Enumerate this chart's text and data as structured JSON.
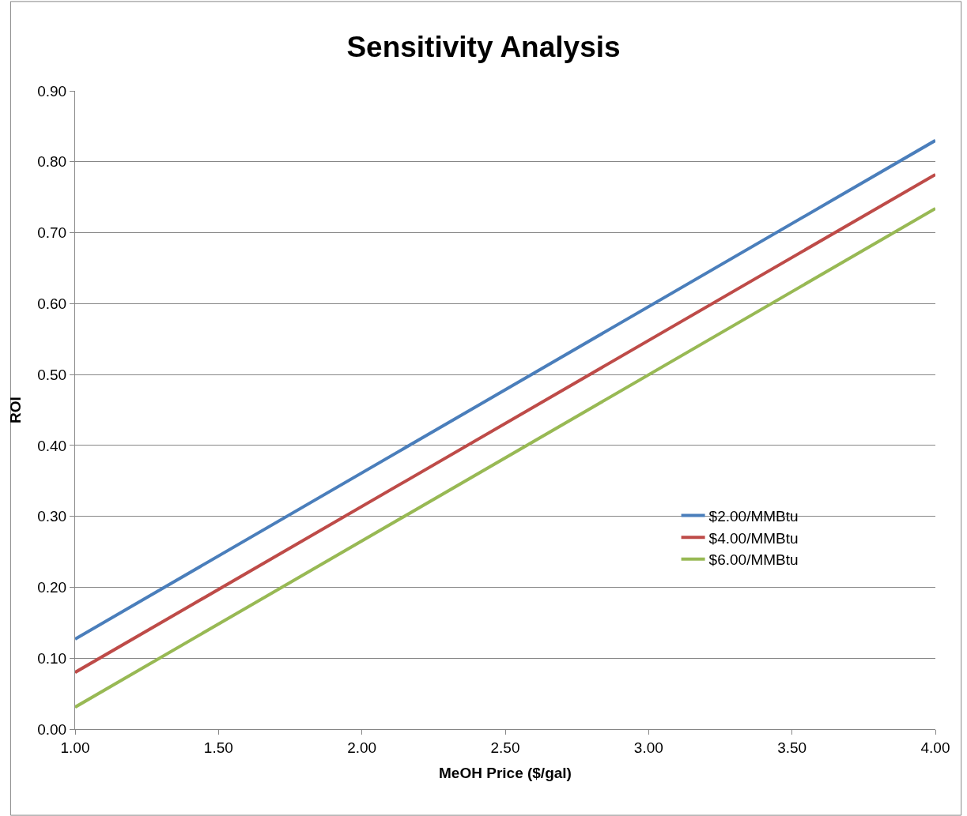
{
  "chart_data": {
    "type": "line",
    "title": "Sensitivity Analysis",
    "xlabel": "MeOH Price ($/gal)",
    "ylabel": "ROI",
    "x": [
      1.0,
      4.0
    ],
    "series": [
      {
        "name": "$2.00/MMBtu",
        "color": "#4a7ebb",
        "values": [
          0.127,
          0.83
        ]
      },
      {
        "name": "$4.00/MMBtu",
        "color": "#be4b48",
        "values": [
          0.08,
          0.782
        ]
      },
      {
        "name": "$6.00/MMBtu",
        "color": "#98b954",
        "values": [
          0.031,
          0.734
        ]
      }
    ],
    "xlim": [
      1.0,
      4.0
    ],
    "xticks": [
      {
        "value": 1.0,
        "label": "1.00"
      },
      {
        "value": 1.5,
        "label": "1.50"
      },
      {
        "value": 2.0,
        "label": "2.00"
      },
      {
        "value": 2.5,
        "label": "2.50"
      },
      {
        "value": 3.0,
        "label": "3.00"
      },
      {
        "value": 3.5,
        "label": "3.50"
      },
      {
        "value": 4.0,
        "label": "4.00"
      }
    ],
    "ylim": [
      0,
      0.9
    ],
    "yticks": [
      {
        "value": 0,
        "label": "0.00"
      },
      {
        "value": 0.1,
        "label": "0.10"
      },
      {
        "value": 0.2,
        "label": "0.20"
      },
      {
        "value": 0.3,
        "label": "0.30"
      },
      {
        "value": 0.4,
        "label": "0.40"
      },
      {
        "value": 0.5,
        "label": "0.50"
      },
      {
        "value": 0.6,
        "label": "0.60"
      },
      {
        "value": 0.7,
        "label": "0.70"
      },
      {
        "value": 0.8,
        "label": "0.80"
      },
      {
        "value": 0.9,
        "label": "0.90"
      }
    ],
    "grid": "y",
    "legend": "right",
    "marker": "none",
    "line_style": "solid"
  }
}
